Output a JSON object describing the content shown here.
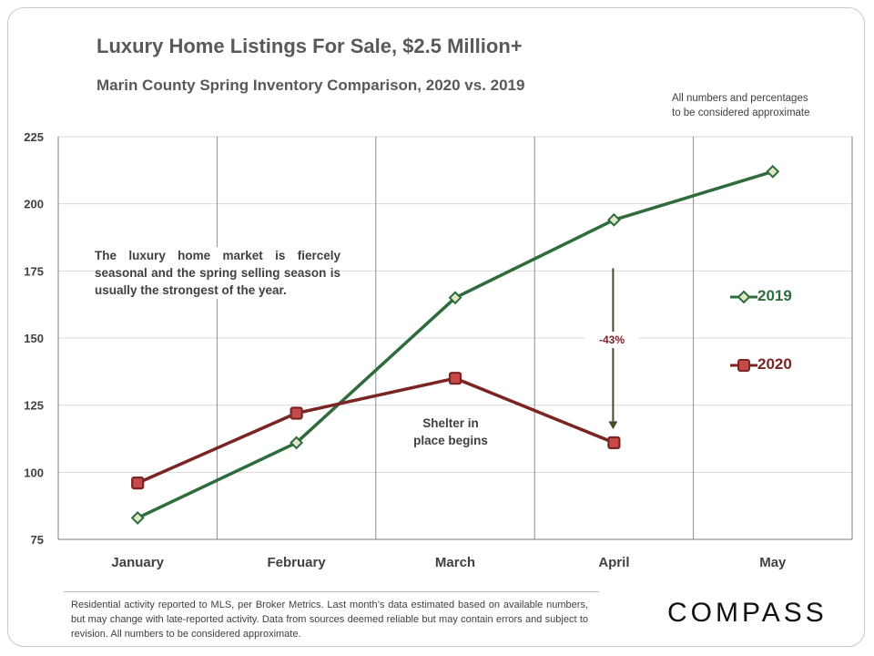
{
  "header": {
    "title": "Luxury Home Listings For Sale, $2.5 Million+",
    "subtitle": "Marin County Spring Inventory Comparison,  2020 vs. 2019",
    "disclaimer_line1": "All numbers and percentages",
    "disclaimer_line2": "to be considered approximate"
  },
  "annotations": {
    "seasonal_note": "The luxury home market is fiercely seasonal and the spring selling season is usually the strongest of the year.",
    "shelter_line1": "Shelter in",
    "shelter_line2": "place begins",
    "change_label": "-43%"
  },
  "colors": {
    "series_2019": "#2e6b3d",
    "series_2020": "#7a2424",
    "marker_2019_fill": "#dfe9c8",
    "marker_2020_fill": "#c74a4a"
  },
  "chart_data": {
    "type": "line",
    "title": "Luxury Home Listings For Sale, $2.5 Million+",
    "categories": [
      "January",
      "February",
      "March",
      "April",
      "May"
    ],
    "ylim": [
      75,
      225
    ],
    "yticks": [
      75,
      100,
      125,
      150,
      175,
      200,
      225
    ],
    "grid": "vertical-and-horizontal",
    "legend": "right",
    "series": [
      {
        "name": "2019",
        "values": [
          83,
          111,
          165,
          194,
          212
        ],
        "marker": "diamond"
      },
      {
        "name": "2020",
        "values": [
          96,
          122,
          135,
          111,
          null
        ],
        "marker": "square"
      }
    ]
  },
  "footer": {
    "note": "Residential activity reported to MLS, per Broker Metrics. Last month’s data estimated based on available numbers, but may change with late-reported activity. Data from sources deemed reliable but may contain errors and subject to revision. All numbers to be considered approximate.",
    "brand": "COMPASS"
  }
}
